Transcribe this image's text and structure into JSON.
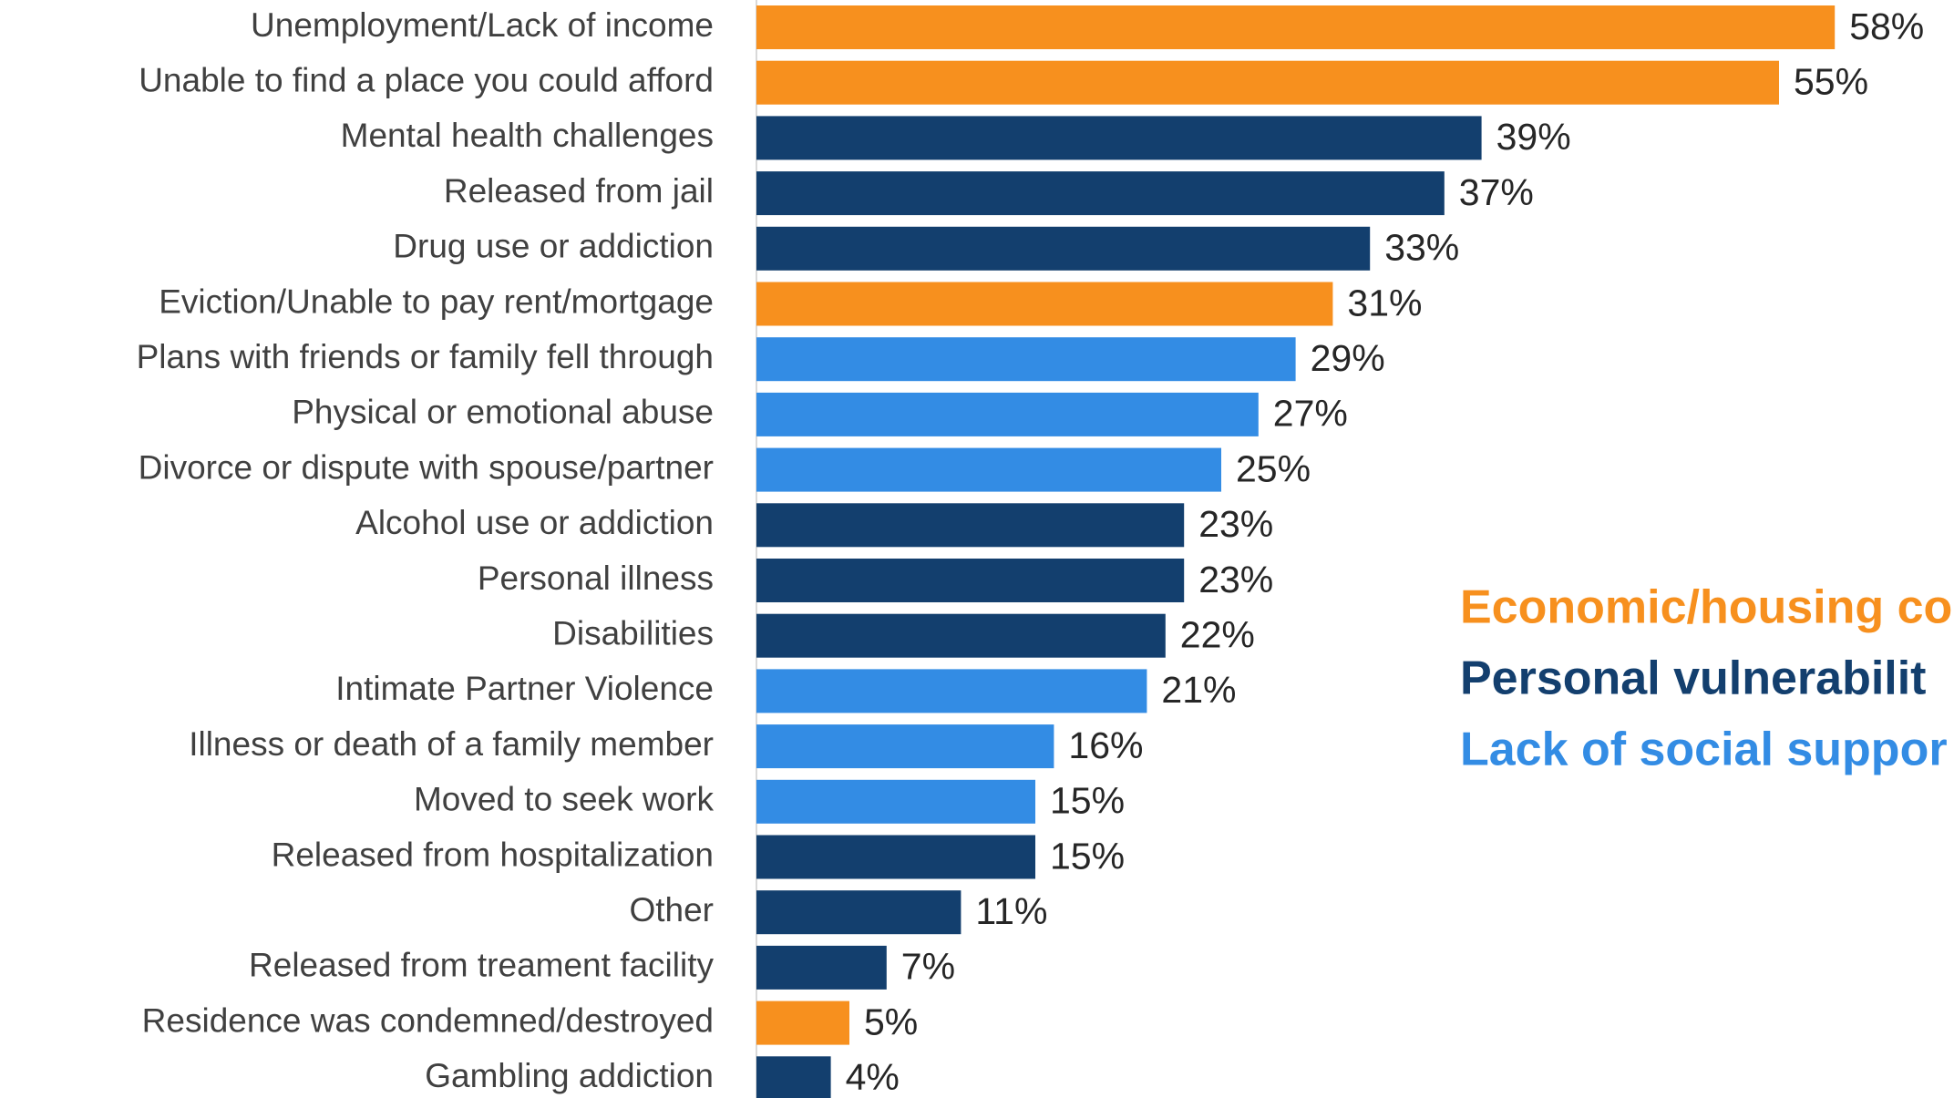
{
  "chart_data": {
    "type": "bar",
    "orientation": "horizontal",
    "categories": [
      "Unemployment/Lack of income",
      "Unable to find a place you could afford",
      "Mental health challenges",
      "Released from jail",
      "Drug use or addiction",
      "Eviction/Unable to pay rent/mortgage",
      "Plans with friends or family fell through",
      "Physical or emotional abuse",
      "Divorce or dispute with spouse/partner",
      "Alcohol use or addiction",
      "Personal illness",
      "Disabilities",
      "Intimate Partner Violence",
      "Illness or death of a family member",
      "Moved to seek work",
      "Released from hospitalization",
      "Other",
      "Released from treament facility",
      "Residence was condemned/destroyed",
      "Gambling addiction"
    ],
    "values": [
      58,
      55,
      39,
      37,
      33,
      31,
      29,
      27,
      25,
      23,
      23,
      22,
      21,
      16,
      15,
      15,
      11,
      7,
      5,
      4
    ],
    "value_labels": [
      "58%",
      "55%",
      "39%",
      "37%",
      "33%",
      "31%",
      "29%",
      "27%",
      "25%",
      "23%",
      "23%",
      "22%",
      "21%",
      "16%",
      "15%",
      "15%",
      "11%",
      "7%",
      "5%",
      "4%"
    ],
    "colors": [
      "#F7901E",
      "#F7901E",
      "#133F6E",
      "#133F6E",
      "#133F6E",
      "#F7901E",
      "#338CE4",
      "#338CE4",
      "#338CE4",
      "#133F6E",
      "#133F6E",
      "#133F6E",
      "#338CE4",
      "#338CE4",
      "#338CE4",
      "#133F6E",
      "#133F6E",
      "#133F6E",
      "#F7901E",
      "#133F6E"
    ],
    "legend": [
      {
        "name": "Economic/housing co",
        "color": "#F7901E"
      },
      {
        "name": "Personal vulnerabilit",
        "color": "#133F6E"
      },
      {
        "name": "Lack of social suppor",
        "color": "#338CE4"
      }
    ]
  }
}
